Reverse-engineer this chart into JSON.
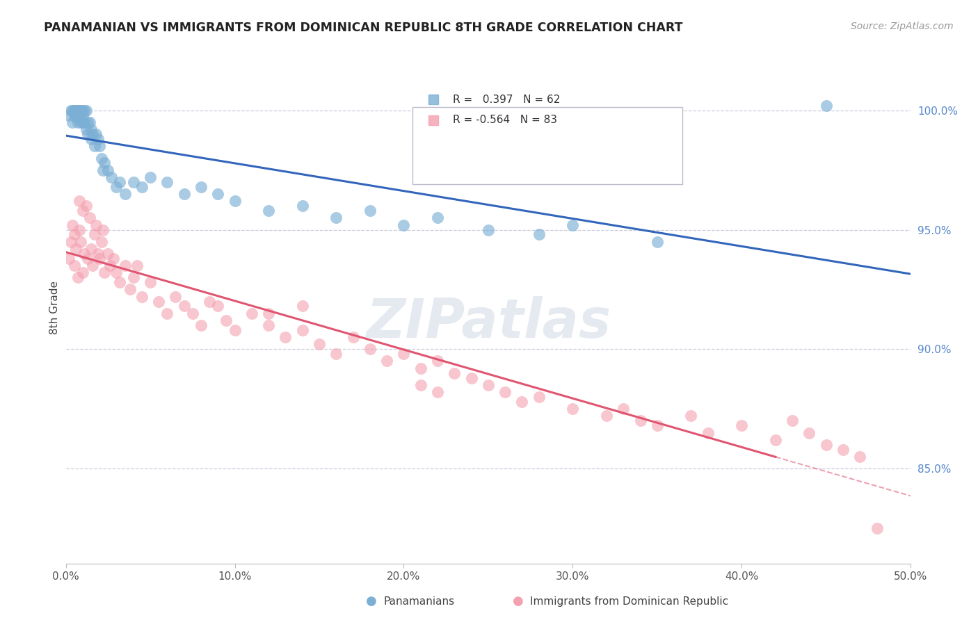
{
  "title": "PANAMANIAN VS IMMIGRANTS FROM DOMINICAN REPUBLIC 8TH GRADE CORRELATION CHART",
  "source": "Source: ZipAtlas.com",
  "ylabel_left": "8th Grade",
  "xlim": [
    0.0,
    50.0
  ],
  "ylim": [
    81.0,
    102.5
  ],
  "blue_color": "#7BAFD4",
  "pink_color": "#F4A0B0",
  "blue_line_color": "#3366BB",
  "pink_line_color": "#E05570",
  "legend_r_blue": "0.397",
  "legend_n_blue": "62",
  "legend_r_pink": "-0.564",
  "legend_n_pink": "83",
  "legend_label_blue": "Panamanians",
  "legend_label_pink": "Immigrants from Dominican Republic",
  "watermark_color": "#AABBD0",
  "blue_scatter_x": [
    0.2,
    0.3,
    0.4,
    0.4,
    0.5,
    0.5,
    0.5,
    0.6,
    0.6,
    0.6,
    0.7,
    0.7,
    0.7,
    0.8,
    0.8,
    0.8,
    0.9,
    0.9,
    1.0,
    1.0,
    1.0,
    1.1,
    1.1,
    1.2,
    1.2,
    1.3,
    1.3,
    1.4,
    1.5,
    1.5,
    1.6,
    1.7,
    1.8,
    1.9,
    2.0,
    2.1,
    2.2,
    2.3,
    2.5,
    2.7,
    3.0,
    3.2,
    3.5,
    4.0,
    4.5,
    5.0,
    6.0,
    7.0,
    8.0,
    9.0,
    10.0,
    12.0,
    14.0,
    16.0,
    18.0,
    20.0,
    22.0,
    25.0,
    28.0,
    30.0,
    35.0,
    45.0
  ],
  "blue_scatter_y": [
    99.8,
    100.0,
    100.0,
    99.5,
    100.0,
    99.8,
    100.0,
    100.0,
    100.0,
    99.7,
    100.0,
    100.0,
    99.5,
    100.0,
    99.8,
    100.0,
    99.5,
    100.0,
    99.5,
    100.0,
    99.8,
    99.5,
    100.0,
    99.2,
    100.0,
    99.0,
    99.5,
    99.5,
    98.8,
    99.2,
    99.0,
    98.5,
    99.0,
    98.8,
    98.5,
    98.0,
    97.5,
    97.8,
    97.5,
    97.2,
    96.8,
    97.0,
    96.5,
    97.0,
    96.8,
    97.2,
    97.0,
    96.5,
    96.8,
    96.5,
    96.2,
    95.8,
    96.0,
    95.5,
    95.8,
    95.2,
    95.5,
    95.0,
    94.8,
    95.2,
    94.5,
    100.2
  ],
  "pink_scatter_x": [
    0.2,
    0.3,
    0.4,
    0.5,
    0.5,
    0.6,
    0.7,
    0.8,
    0.8,
    0.9,
    1.0,
    1.0,
    1.1,
    1.2,
    1.3,
    1.4,
    1.5,
    1.6,
    1.7,
    1.8,
    1.9,
    2.0,
    2.1,
    2.2,
    2.3,
    2.5,
    2.6,
    2.8,
    3.0,
    3.2,
    3.5,
    3.8,
    4.0,
    4.2,
    4.5,
    5.0,
    5.5,
    6.0,
    6.5,
    7.0,
    7.5,
    8.0,
    8.5,
    9.0,
    9.5,
    10.0,
    11.0,
    12.0,
    13.0,
    14.0,
    15.0,
    16.0,
    17.0,
    18.0,
    19.0,
    20.0,
    21.0,
    22.0,
    23.0,
    24.0,
    25.0,
    26.0,
    27.0,
    28.0,
    30.0,
    32.0,
    33.0,
    34.0,
    35.0,
    37.0,
    38.0,
    40.0,
    42.0,
    43.0,
    44.0,
    45.0,
    46.0,
    47.0,
    48.0,
    12.0,
    14.0,
    21.0,
    22.0
  ],
  "pink_scatter_y": [
    93.8,
    94.5,
    95.2,
    93.5,
    94.8,
    94.2,
    93.0,
    95.0,
    96.2,
    94.5,
    95.8,
    93.2,
    94.0,
    96.0,
    93.8,
    95.5,
    94.2,
    93.5,
    94.8,
    95.2,
    94.0,
    93.8,
    94.5,
    95.0,
    93.2,
    94.0,
    93.5,
    93.8,
    93.2,
    92.8,
    93.5,
    92.5,
    93.0,
    93.5,
    92.2,
    92.8,
    92.0,
    91.5,
    92.2,
    91.8,
    91.5,
    91.0,
    92.0,
    91.8,
    91.2,
    90.8,
    91.5,
    91.0,
    90.5,
    90.8,
    90.2,
    89.8,
    90.5,
    90.0,
    89.5,
    89.8,
    89.2,
    89.5,
    89.0,
    88.8,
    88.5,
    88.2,
    87.8,
    88.0,
    87.5,
    87.2,
    87.5,
    87.0,
    86.8,
    87.2,
    86.5,
    86.8,
    86.2,
    87.0,
    86.5,
    86.0,
    85.8,
    85.5,
    82.5,
    91.5,
    91.8,
    88.5,
    88.2
  ]
}
